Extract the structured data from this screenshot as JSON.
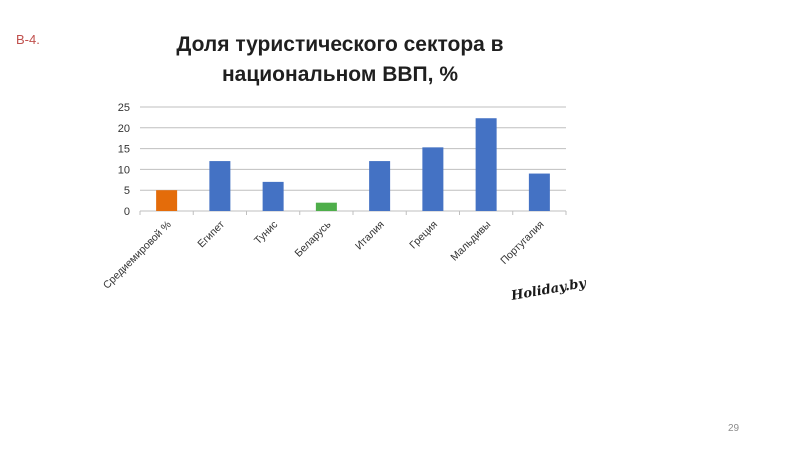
{
  "slide": {
    "tag": "В-4.",
    "page_number": "29"
  },
  "watermark": {
    "text": "Holiday.by"
  },
  "chart_data": {
    "type": "bar",
    "title": "Доля туристического сектора в национальном ВВП, %",
    "title_lines": [
      "Доля туристического сектора в",
      "национальном ВВП, %"
    ],
    "xlabel": "",
    "ylabel": "",
    "ylim": [
      0,
      25
    ],
    "yticks": [
      0,
      5,
      10,
      15,
      20,
      25
    ],
    "grid": true,
    "legend": "none",
    "categories": [
      "Средиемировой %",
      "Египет",
      "Тунис",
      "Беларусь",
      "Италия",
      "Греция",
      "Мальдивы",
      "Португалия"
    ],
    "values": [
      5,
      12,
      7,
      2,
      12,
      15.3,
      22.3,
      9
    ],
    "colors": [
      "#e46c0a",
      "#4472c4",
      "#4472c4",
      "#4eae4a",
      "#4472c4",
      "#4472c4",
      "#4472c4",
      "#4472c4"
    ]
  }
}
